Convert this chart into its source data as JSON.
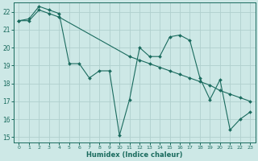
{
  "xlabel": "Humidex (Indice chaleur)",
  "xlim": [
    -0.5,
    23.5
  ],
  "ylim": [
    14.7,
    22.5
  ],
  "xticks": [
    0,
    1,
    2,
    3,
    4,
    5,
    6,
    7,
    8,
    9,
    10,
    11,
    12,
    13,
    14,
    15,
    16,
    17,
    18,
    19,
    20,
    21,
    22,
    23
  ],
  "yticks": [
    15,
    16,
    17,
    18,
    19,
    20,
    21,
    22
  ],
  "bg_color": "#cde8e6",
  "line_color": "#1a6b5e",
  "grid_color": "#b0d0ce",
  "line1_x": [
    0,
    1,
    2,
    3,
    4,
    5,
    6,
    7,
    8,
    9,
    10,
    11,
    12,
    13,
    14,
    15,
    16,
    17,
    18,
    19,
    20,
    21,
    22,
    23
  ],
  "line1_y": [
    21.5,
    21.6,
    22.3,
    22.1,
    21.9,
    19.1,
    19.1,
    18.3,
    18.7,
    18.7,
    15.1,
    17.1,
    20.0,
    19.5,
    19.5,
    20.6,
    20.7,
    20.4,
    18.3,
    17.1,
    18.2,
    15.4,
    16.0,
    16.4
  ],
  "line2_x": [
    0,
    1,
    2,
    3,
    4,
    11,
    12,
    13,
    14,
    15,
    16,
    17,
    18,
    19,
    20,
    21,
    22,
    23
  ],
  "line2_y": [
    21.5,
    21.5,
    22.1,
    21.9,
    21.7,
    19.5,
    19.3,
    19.1,
    18.9,
    18.7,
    18.5,
    18.3,
    18.1,
    17.9,
    17.6,
    17.4,
    17.2,
    17.0
  ]
}
